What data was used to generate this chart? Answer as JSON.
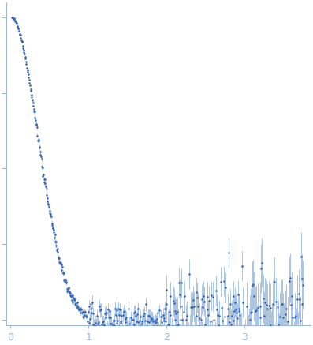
{
  "title": "",
  "xlabel": "",
  "ylabel": "",
  "xlim": [
    -0.05,
    3.85
  ],
  "ylim": [
    -0.02,
    1.05
  ],
  "scatter_color": "#3a6ab5",
  "errorbar_color": "#a8c4e8",
  "outlier_color": "#cc2222",
  "marker_size": 3.5,
  "x_ticks": [
    0,
    1,
    2,
    3
  ],
  "y_ticks": [
    0.0,
    0.25,
    0.5,
    0.75,
    1.0
  ],
  "background_color": "#ffffff",
  "spine_color": "#a0b8d8",
  "seed": 12345,
  "n_low": 150,
  "n_mid": 150,
  "n_high": 200
}
